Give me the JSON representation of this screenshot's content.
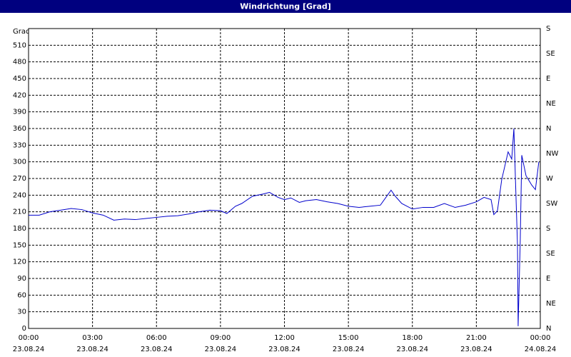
{
  "chart_data": {
    "type": "line",
    "title": "Windrichtung [Grad]",
    "y_label": "Grad",
    "x": [
      0,
      0.5,
      1,
      1.5,
      2,
      2.5,
      3,
      3.5,
      4,
      4.5,
      5,
      5.5,
      6,
      6.5,
      7,
      7.5,
      8,
      8.5,
      9,
      9.3,
      9.7,
      10,
      10.5,
      11,
      11.3,
      11.7,
      12,
      12.3,
      12.7,
      13,
      13.5,
      14,
      14.5,
      15,
      15.5,
      16,
      16.5,
      17,
      17.2,
      17.5,
      18,
      18.5,
      19,
      19.5,
      20,
      20.5,
      21,
      21.36,
      21.69,
      21.82,
      21.99,
      22.19,
      22.49,
      22.66,
      22.76,
      22.93,
      22.96,
      23.06,
      23.13,
      23.33,
      23.6,
      23.77,
      23.93
    ],
    "series": [
      {
        "name": "Windrichtung",
        "color": "#0000cc",
        "values": [
          204,
          204,
          210,
          213,
          216,
          214,
          208,
          204,
          195,
          197,
          196,
          198,
          200,
          202,
          203,
          206,
          210,
          213,
          212,
          207,
          220,
          225,
          238,
          242,
          245,
          236,
          232,
          235,
          227,
          230,
          232,
          228,
          225,
          220,
          218,
          220,
          222,
          249,
          238,
          225,
          215,
          218,
          218,
          225,
          218,
          222,
          228,
          236,
          232,
          205,
          212,
          268,
          318,
          305,
          360,
          150,
          4,
          160,
          312,
          275,
          258,
          250,
          300
        ]
      }
    ],
    "xlim": [
      0,
      24
    ],
    "xticks": [
      {
        "value": 0,
        "label": "00:00"
      },
      {
        "value": 3,
        "label": "03:00"
      },
      {
        "value": 6,
        "label": "06:00"
      },
      {
        "value": 9,
        "label": "09:00"
      },
      {
        "value": 12,
        "label": "12:00"
      },
      {
        "value": 15,
        "label": "15:00"
      },
      {
        "value": 18,
        "label": "18:00"
      },
      {
        "value": 21,
        "label": "21:00"
      },
      {
        "value": 24,
        "label": "00:00"
      }
    ],
    "xtick_dates": [
      "23.08.24",
      "23.08.24",
      "23.08.24",
      "23.08.24",
      "23.08.24",
      "23.08.24",
      "23.08.24",
      "23.08.24",
      "24.08.24"
    ],
    "ylim": [
      0,
      540
    ],
    "yticks": [
      0,
      30,
      60,
      90,
      120,
      150,
      180,
      210,
      240,
      270,
      300,
      330,
      360,
      390,
      420,
      450,
      480,
      510
    ],
    "y2lim": [
      0,
      540
    ],
    "y2ticks": [
      {
        "value": 0,
        "label": "N"
      },
      {
        "value": 45,
        "label": "NE"
      },
      {
        "value": 90,
        "label": "E"
      },
      {
        "value": 135,
        "label": "SE"
      },
      {
        "value": 180,
        "label": "S"
      },
      {
        "value": 225,
        "label": "SW"
      },
      {
        "value": 270,
        "label": "W"
      },
      {
        "value": 315,
        "label": "NW"
      },
      {
        "value": 360,
        "label": "N"
      },
      {
        "value": 405,
        "label": "NE"
      },
      {
        "value": 450,
        "label": "E"
      },
      {
        "value": 495,
        "label": "SE"
      },
      {
        "value": 540,
        "label": "S"
      }
    ],
    "grid": true
  }
}
